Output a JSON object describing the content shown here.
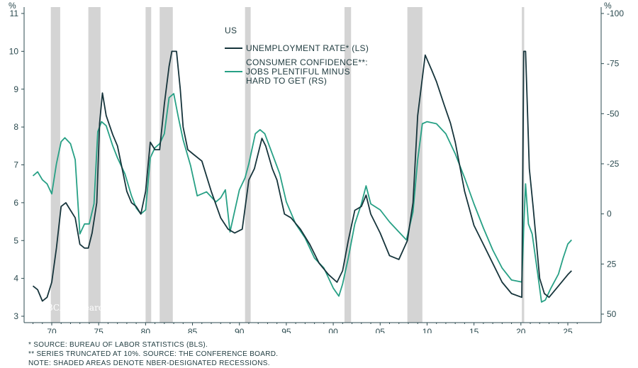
{
  "chart_data": {
    "type": "line",
    "title": "US",
    "x_tick_labels": [
      "70",
      "75",
      "80",
      "85",
      "90",
      "95",
      "00",
      "05",
      "10",
      "15",
      "20",
      "25"
    ],
    "left_axis": {
      "unit": "%",
      "ticks": [
        3,
        4,
        5,
        6,
        7,
        8,
        9,
        10,
        11
      ],
      "range": [
        2.9,
        11.2
      ]
    },
    "right_axis": {
      "unit": "%",
      "ticks": [
        50,
        25,
        0,
        -25,
        -50,
        -75,
        -100
      ],
      "inverted": true,
      "range": [
        52,
        -101
      ]
    },
    "recessions": [
      {
        "start": 1969.9,
        "end": 1970.9
      },
      {
        "start": 1973.9,
        "end": 1975.2
      },
      {
        "start": 1980.0,
        "end": 1980.6
      },
      {
        "start": 1981.5,
        "end": 1982.9
      },
      {
        "start": 1990.6,
        "end": 1991.2
      },
      {
        "start": 2001.2,
        "end": 2001.9
      },
      {
        "start": 2007.9,
        "end": 2009.5
      },
      {
        "start": 2020.1,
        "end": 2020.35
      }
    ],
    "series": [
      {
        "name": "UNEMPLOYMENT RATE* (LS)",
        "axis": "left",
        "color": "#16343b",
        "points": [
          [
            1968.0,
            3.8
          ],
          [
            1968.5,
            3.7
          ],
          [
            1969.0,
            3.4
          ],
          [
            1969.5,
            3.5
          ],
          [
            1970.0,
            3.9
          ],
          [
            1970.5,
            4.8
          ],
          [
            1971.0,
            5.9
          ],
          [
            1971.5,
            6.0
          ],
          [
            1972.0,
            5.8
          ],
          [
            1972.5,
            5.6
          ],
          [
            1973.0,
            4.9
          ],
          [
            1973.5,
            4.8
          ],
          [
            1973.9,
            4.8
          ],
          [
            1974.3,
            5.2
          ],
          [
            1974.8,
            6.0
          ],
          [
            1975.1,
            8.1
          ],
          [
            1975.4,
            8.9
          ],
          [
            1975.8,
            8.3
          ],
          [
            1976.5,
            7.8
          ],
          [
            1977.0,
            7.5
          ],
          [
            1977.5,
            6.9
          ],
          [
            1978.0,
            6.3
          ],
          [
            1978.5,
            6.0
          ],
          [
            1979.0,
            5.9
          ],
          [
            1979.5,
            5.7
          ],
          [
            1980.0,
            6.3
          ],
          [
            1980.5,
            7.6
          ],
          [
            1981.0,
            7.4
          ],
          [
            1981.5,
            7.4
          ],
          [
            1982.0,
            8.6
          ],
          [
            1982.5,
            9.6
          ],
          [
            1982.8,
            10.0
          ],
          [
            1983.3,
            10.0
          ],
          [
            1983.7,
            9.0
          ],
          [
            1984.0,
            8.0
          ],
          [
            1984.5,
            7.4
          ],
          [
            1985.0,
            7.3
          ],
          [
            1986.0,
            7.1
          ],
          [
            1987.0,
            6.3
          ],
          [
            1988.0,
            5.6
          ],
          [
            1988.8,
            5.3
          ],
          [
            1989.5,
            5.2
          ],
          [
            1990.3,
            5.3
          ],
          [
            1991.0,
            6.6
          ],
          [
            1991.6,
            6.9
          ],
          [
            1992.4,
            7.7
          ],
          [
            1992.8,
            7.5
          ],
          [
            1993.5,
            6.9
          ],
          [
            1994.0,
            6.6
          ],
          [
            1994.8,
            5.7
          ],
          [
            1995.5,
            5.6
          ],
          [
            1996.5,
            5.3
          ],
          [
            1997.5,
            4.9
          ],
          [
            1998.5,
            4.4
          ],
          [
            1999.5,
            4.1
          ],
          [
            2000.4,
            3.9
          ],
          [
            2001.0,
            4.2
          ],
          [
            2001.6,
            5.0
          ],
          [
            2002.3,
            5.8
          ],
          [
            2003.0,
            5.9
          ],
          [
            2003.5,
            6.2
          ],
          [
            2004.0,
            5.7
          ],
          [
            2005.0,
            5.2
          ],
          [
            2006.0,
            4.6
          ],
          [
            2007.0,
            4.5
          ],
          [
            2007.9,
            5.0
          ],
          [
            2008.5,
            6.0
          ],
          [
            2009.0,
            8.3
          ],
          [
            2009.8,
            9.9
          ],
          [
            2010.5,
            9.5
          ],
          [
            2011.0,
            9.2
          ],
          [
            2011.8,
            8.6
          ],
          [
            2012.5,
            8.1
          ],
          [
            2013.0,
            7.6
          ],
          [
            2014.0,
            6.3
          ],
          [
            2015.0,
            5.4
          ],
          [
            2016.0,
            4.9
          ],
          [
            2017.0,
            4.4
          ],
          [
            2018.0,
            3.9
          ],
          [
            2019.0,
            3.6
          ],
          [
            2020.1,
            3.5
          ],
          [
            2020.3,
            10.0
          ],
          [
            2020.5,
            10.0
          ],
          [
            2020.9,
            6.9
          ],
          [
            2021.3,
            5.9
          ],
          [
            2022.0,
            4.0
          ],
          [
            2022.5,
            3.6
          ],
          [
            2023.0,
            3.5
          ],
          [
            2024.0,
            3.8
          ],
          [
            2025.0,
            4.1
          ],
          [
            2025.4,
            4.2
          ]
        ]
      },
      {
        "name": "CONSUMER CONFIDENCE**: JOBS PLENTIFUL MINUS HARD TO GET (RS)",
        "axis": "right",
        "color": "#27a085",
        "points": [
          [
            1968.0,
            -19
          ],
          [
            1968.5,
            -21
          ],
          [
            1969.0,
            -17
          ],
          [
            1969.5,
            -15
          ],
          [
            1970.0,
            -10
          ],
          [
            1970.5,
            -25
          ],
          [
            1971.0,
            -36
          ],
          [
            1971.4,
            -38
          ],
          [
            1972.0,
            -35
          ],
          [
            1972.5,
            -27
          ],
          [
            1973.0,
            10
          ],
          [
            1973.5,
            5
          ],
          [
            1974.0,
            5
          ],
          [
            1974.5,
            -5
          ],
          [
            1974.9,
            -41
          ],
          [
            1975.3,
            -46
          ],
          [
            1975.8,
            -44
          ],
          [
            1976.5,
            -34
          ],
          [
            1977.0,
            -28
          ],
          [
            1977.8,
            -20
          ],
          [
            1978.5,
            -9
          ],
          [
            1979.0,
            -3
          ],
          [
            1979.5,
            0
          ],
          [
            1980.0,
            -2
          ],
          [
            1980.5,
            -28
          ],
          [
            1981.0,
            -33
          ],
          [
            1981.5,
            -35
          ],
          [
            1982.0,
            -40
          ],
          [
            1982.5,
            -58
          ],
          [
            1983.0,
            -60
          ],
          [
            1983.5,
            -48
          ],
          [
            1984.0,
            -37
          ],
          [
            1984.8,
            -24
          ],
          [
            1985.5,
            -9
          ],
          [
            1986.5,
            -11
          ],
          [
            1987.5,
            -6
          ],
          [
            1988.0,
            -8
          ],
          [
            1988.5,
            -12
          ],
          [
            1989.0,
            9
          ],
          [
            1990.0,
            -12
          ],
          [
            1990.6,
            -18
          ],
          [
            1991.0,
            -25
          ],
          [
            1991.7,
            -40
          ],
          [
            1992.2,
            -42
          ],
          [
            1992.7,
            -40
          ],
          [
            1993.5,
            -30
          ],
          [
            1994.3,
            -20
          ],
          [
            1995.0,
            -6
          ],
          [
            1996.0,
            5
          ],
          [
            1997.0,
            12
          ],
          [
            1998.0,
            22
          ],
          [
            1999.0,
            27
          ],
          [
            2000.0,
            37
          ],
          [
            2000.6,
            41
          ],
          [
            2001.0,
            35
          ],
          [
            2001.6,
            22
          ],
          [
            2002.3,
            5
          ],
          [
            2003.0,
            -5
          ],
          [
            2003.5,
            -14
          ],
          [
            2004.0,
            -5
          ],
          [
            2005.0,
            -2
          ],
          [
            2006.0,
            4
          ],
          [
            2007.0,
            9
          ],
          [
            2007.8,
            13
          ],
          [
            2008.5,
            -1
          ],
          [
            2009.0,
            -27
          ],
          [
            2009.5,
            -45
          ],
          [
            2010.0,
            -46
          ],
          [
            2011.0,
            -45
          ],
          [
            2012.0,
            -40
          ],
          [
            2013.0,
            -30
          ],
          [
            2014.0,
            -18
          ],
          [
            2015.0,
            -5
          ],
          [
            2016.0,
            7
          ],
          [
            2017.0,
            18
          ],
          [
            2018.0,
            27
          ],
          [
            2019.0,
            33
          ],
          [
            2020.1,
            34
          ],
          [
            2020.3,
            7
          ],
          [
            2020.5,
            -15
          ],
          [
            2020.8,
            5
          ],
          [
            2021.2,
            10
          ],
          [
            2021.8,
            30
          ],
          [
            2022.2,
            44
          ],
          [
            2022.6,
            43
          ],
          [
            2023.2,
            37
          ],
          [
            2024.0,
            30
          ],
          [
            2024.5,
            22
          ],
          [
            2025.0,
            15
          ],
          [
            2025.4,
            13
          ]
        ]
      }
    ],
    "legend": {
      "title": "US",
      "items": [
        {
          "lines": [
            "UNEMPLOYMENT RATE* (LS)"
          ],
          "color": "#16343b"
        },
        {
          "lines": [
            "CONSUMER CONFIDENCE**:",
            "JOBS PLENTIFUL MINUS",
            "HARD TO GET (RS)"
          ],
          "color": "#27a085"
        }
      ]
    },
    "grid": false,
    "legend_placement": "top-center"
  },
  "watermark": "© BCA Research 2025",
  "notes": [
    "*  SOURCE: BUREAU OF LABOR STATISTICS (BLS).",
    "** SERIES TRUNCATED AT 10%. SOURCE: THE CONFERENCE BOARD.",
    "NOTE: SHADED AREAS DENOTE NBER-DESIGNATED RECESSIONS."
  ],
  "colors": {
    "axis": "#2b4a4f",
    "recession_band": "#d4d4d4"
  }
}
